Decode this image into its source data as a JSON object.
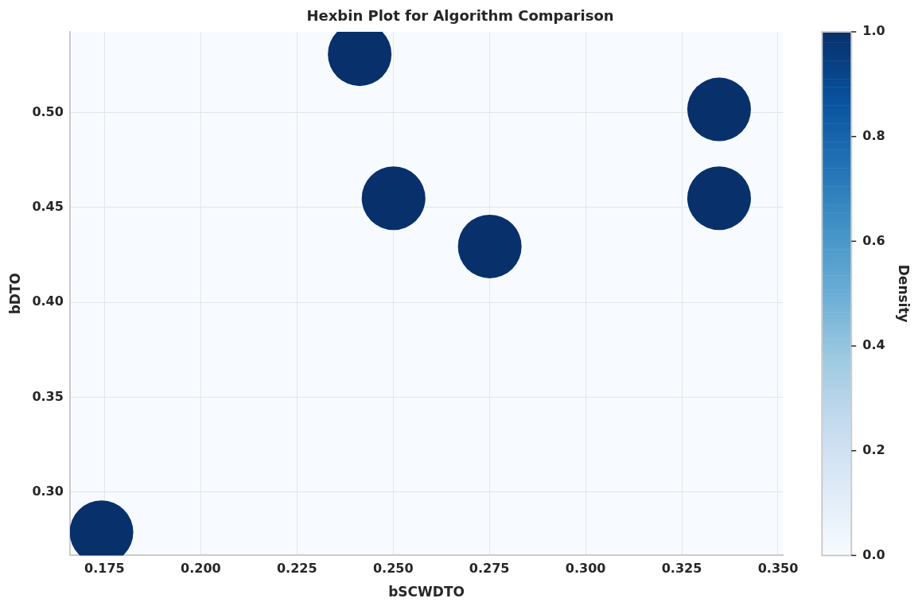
{
  "chart_data": {
    "type": "scatter",
    "title": "Hexbin Plot for Algorithm Comparison",
    "xlabel": "bSCWDTO",
    "ylabel": "bDTO",
    "clabel": "Density",
    "series": [
      {
        "x": [
          0.1742,
          0.2413,
          0.2501,
          0.2751,
          0.3347,
          0.3347
        ],
        "values": [
          0.2789,
          0.5308,
          0.4549,
          0.4295,
          0.5017,
          0.4549
        ],
        "cvalues": [
          1,
          1,
          1,
          1,
          1,
          1
        ]
      }
    ],
    "xlim": [
      0.166,
      0.3513
    ],
    "xticks": [
      {
        "value": 0.175,
        "label": "0.175"
      },
      {
        "value": 0.2,
        "label": "0.200"
      },
      {
        "value": 0.225,
        "label": "0.225"
      },
      {
        "value": 0.25,
        "label": "0.250"
      },
      {
        "value": 0.275,
        "label": "0.275"
      },
      {
        "value": 0.3,
        "label": "0.300"
      },
      {
        "value": 0.325,
        "label": "0.325"
      },
      {
        "value": 0.35,
        "label": "0.350"
      }
    ],
    "ylim": [
      0.2667,
      0.5426
    ],
    "yticks": [
      {
        "value": 0.3,
        "label": "0.30"
      },
      {
        "value": 0.35,
        "label": "0.35"
      },
      {
        "value": 0.4,
        "label": "0.40"
      },
      {
        "value": 0.45,
        "label": "0.45"
      },
      {
        "value": 0.5,
        "label": "0.50"
      }
    ],
    "clim": [
      0,
      1
    ],
    "cticks": [
      {
        "value": 0,
        "label": "0.0"
      },
      {
        "value": 0.2,
        "label": "0.2"
      },
      {
        "value": 0.4,
        "label": "0.4"
      },
      {
        "value": 0.6,
        "label": "0.6"
      },
      {
        "value": 0.8,
        "label": "0.8"
      },
      {
        "value": 1,
        "label": "1.0"
      }
    ],
    "grid": true,
    "legend": false
  }
}
